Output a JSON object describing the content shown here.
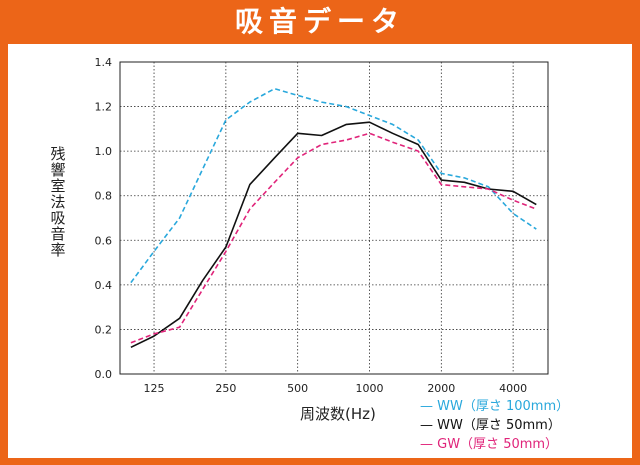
{
  "header": {
    "title": "吸音データ"
  },
  "chart_data": {
    "type": "line",
    "title": "吸音データ",
    "xlabel": "周波数(Hz)",
    "ylabel": "残響室法吸音率",
    "x_ticks": [
      "125",
      "250",
      "500",
      "1000",
      "2000",
      "4000"
    ],
    "ylim": [
      0,
      1.4
    ],
    "y_ticks": [
      "0.0",
      "0.2",
      "0.4",
      "0.6",
      "0.8",
      "1.0",
      "1.2",
      "1.4"
    ],
    "grid": true,
    "legend_position": "bottom-right",
    "series": [
      {
        "name": "WW（厚さ 100mm）",
        "legend_label": "— WW（厚さ 100mm）",
        "color": "#29a8dc",
        "style": "dashed",
        "x": [
          100,
          125,
          160,
          200,
          250,
          315,
          400,
          500,
          630,
          800,
          1000,
          1250,
          1600,
          2000,
          2500,
          3150,
          4000,
          5000
        ],
        "values": [
          0.41,
          0.55,
          0.7,
          0.92,
          1.14,
          1.22,
          1.28,
          1.25,
          1.22,
          1.2,
          1.16,
          1.12,
          1.05,
          0.9,
          0.88,
          0.84,
          0.72,
          0.65
        ]
      },
      {
        "name": "WW（厚さ 50mm）",
        "legend_label": "— WW（厚さ 50mm）",
        "color": "#111111",
        "style": "solid",
        "x": [
          100,
          125,
          160,
          200,
          250,
          315,
          400,
          500,
          630,
          800,
          1000,
          1250,
          1600,
          2000,
          2500,
          3150,
          4000,
          5000
        ],
        "values": [
          0.12,
          0.17,
          0.25,
          0.42,
          0.57,
          0.85,
          0.97,
          1.08,
          1.07,
          1.12,
          1.13,
          1.08,
          1.03,
          0.87,
          0.86,
          0.83,
          0.82,
          0.76
        ]
      },
      {
        "name": "GW（厚さ 50mm）",
        "legend_label": "— GW（厚さ 50mm）",
        "color": "#e0247a",
        "style": "dashed",
        "x": [
          100,
          125,
          160,
          200,
          250,
          315,
          400,
          500,
          630,
          800,
          1000,
          1250,
          1600,
          2000,
          2500,
          3150,
          4000,
          5000
        ],
        "values": [
          0.14,
          0.18,
          0.21,
          0.38,
          0.55,
          0.74,
          0.86,
          0.97,
          1.03,
          1.05,
          1.08,
          1.04,
          1.0,
          0.85,
          0.84,
          0.83,
          0.78,
          0.74
        ]
      }
    ]
  }
}
